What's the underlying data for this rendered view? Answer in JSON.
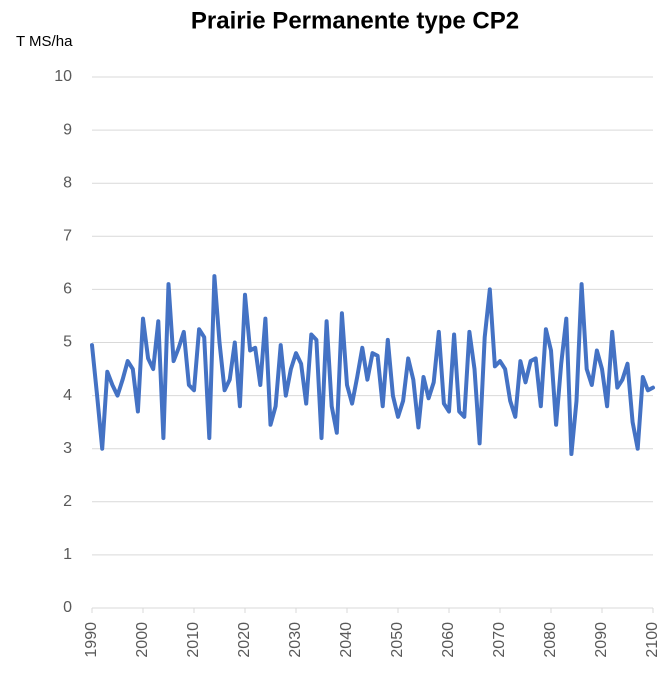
{
  "chart_data": {
    "type": "line",
    "title": "Prairie Permanente type CP2",
    "y_label": "T MS/ha",
    "x": [
      1990,
      1991,
      1992,
      1993,
      1994,
      1995,
      1996,
      1997,
      1998,
      1999,
      2000,
      2001,
      2002,
      2003,
      2004,
      2005,
      2006,
      2007,
      2008,
      2009,
      2010,
      2011,
      2012,
      2013,
      2014,
      2015,
      2016,
      2017,
      2018,
      2019,
      2020,
      2021,
      2022,
      2023,
      2024,
      2025,
      2026,
      2027,
      2028,
      2029,
      2030,
      2031,
      2032,
      2033,
      2034,
      2035,
      2036,
      2037,
      2038,
      2039,
      2040,
      2041,
      2042,
      2043,
      2044,
      2045,
      2046,
      2047,
      2048,
      2049,
      2050,
      2051,
      2052,
      2053,
      2054,
      2055,
      2056,
      2057,
      2058,
      2059,
      2060,
      2061,
      2062,
      2063,
      2064,
      2065,
      2066,
      2067,
      2068,
      2069,
      2070,
      2071,
      2072,
      2073,
      2074,
      2075,
      2076,
      2077,
      2078,
      2079,
      2080,
      2081,
      2082,
      2083,
      2084,
      2085,
      2086,
      2087,
      2088,
      2089,
      2090,
      2091,
      2092,
      2093,
      2094,
      2095,
      2096,
      2097,
      2098,
      2099,
      2100
    ],
    "values": [
      4.95,
      4.0,
      3.0,
      4.45,
      4.2,
      4.0,
      4.3,
      4.65,
      4.5,
      3.7,
      5.45,
      4.7,
      4.5,
      5.4,
      3.2,
      6.1,
      4.65,
      4.9,
      5.2,
      4.2,
      4.1,
      5.25,
      5.1,
      3.2,
      6.25,
      5.0,
      4.1,
      4.3,
      5.0,
      3.8,
      5.9,
      4.85,
      4.9,
      4.2,
      5.45,
      3.45,
      3.8,
      4.95,
      4.0,
      4.5,
      4.8,
      4.6,
      3.85,
      5.15,
      5.05,
      3.2,
      5.4,
      3.8,
      3.3,
      5.55,
      4.2,
      3.85,
      4.35,
      4.9,
      4.3,
      4.8,
      4.75,
      3.8,
      5.05,
      4.0,
      3.6,
      3.9,
      4.7,
      4.3,
      3.4,
      4.35,
      3.95,
      4.25,
      5.2,
      3.85,
      3.7,
      5.15,
      3.7,
      3.6,
      5.2,
      4.5,
      3.1,
      5.1,
      6.0,
      4.55,
      4.65,
      4.5,
      3.9,
      3.6,
      4.65,
      4.25,
      4.65,
      4.7,
      3.8,
      5.25,
      4.85,
      3.45,
      4.6,
      5.45,
      2.9,
      3.9,
      6.1,
      4.5,
      4.2,
      4.85,
      4.5,
      3.8,
      5.2,
      4.15,
      4.3,
      4.6,
      3.5,
      3.0,
      4.35,
      4.1,
      4.15
    ],
    "color": "#4472c4",
    "xlim": [
      1990,
      2100
    ],
    "xticks": [
      1990,
      2000,
      2010,
      2020,
      2030,
      2040,
      2050,
      2060,
      2070,
      2080,
      2090,
      2100
    ],
    "ylim": [
      0,
      10
    ],
    "yticks": [
      0,
      1,
      2,
      3,
      4,
      5,
      6,
      7,
      8,
      9,
      10
    ],
    "grid": true
  }
}
